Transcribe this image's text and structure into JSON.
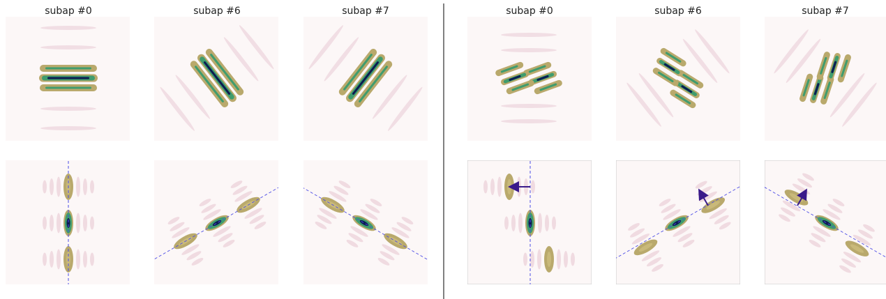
{
  "columns": {
    "left": [
      "subap #0",
      "subap #6",
      "subap #7"
    ],
    "right": [
      "subap #0",
      "subap #6",
      "subap #7"
    ]
  }
}
